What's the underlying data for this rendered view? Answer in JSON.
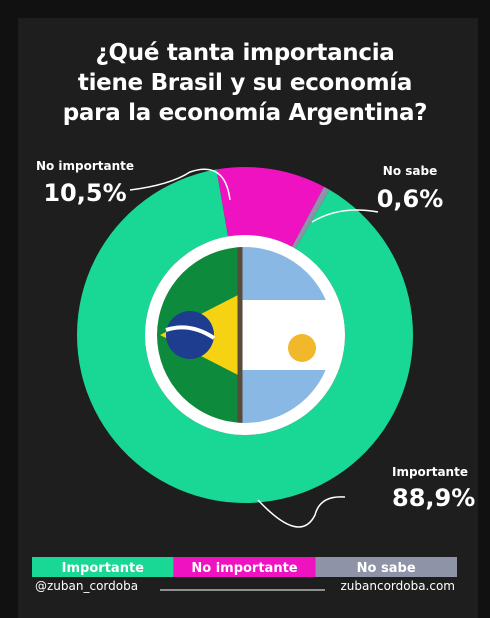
{
  "chart_data": {
    "type": "pie",
    "title": "¿Qué tanta importancia tiene Brasil y su economía para la economía Argentina?",
    "categories": [
      "Importante",
      "No importante",
      "No sabe"
    ],
    "values": [
      88.9,
      10.5,
      0.6
    ],
    "value_labels": [
      "88,9%",
      "10,5%",
      "0,6%"
    ],
    "colors": [
      "#19d795",
      "#ee12c1",
      "#8f93a8"
    ],
    "donut": true
  },
  "footer": {
    "left": "@zuban_cordoba",
    "right": "zubancordoba.com"
  }
}
